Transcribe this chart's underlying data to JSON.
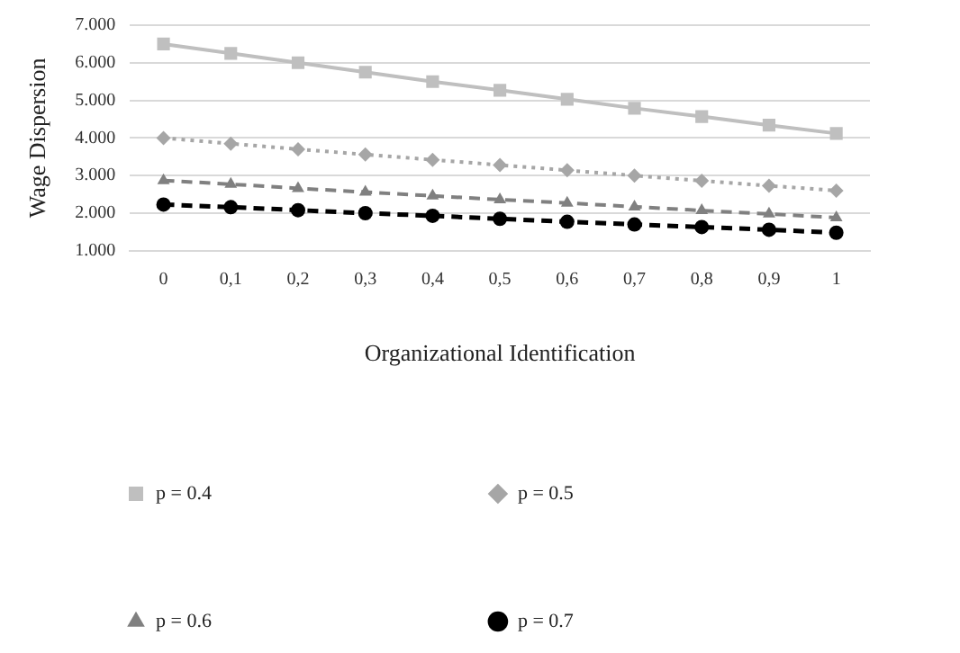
{
  "chart_data": {
    "type": "line",
    "xlabel": "Organizational Identification",
    "ylabel": "Wage Dispersion",
    "categories": [
      "0",
      "0,1",
      "0,2",
      "0,3",
      "0,4",
      "0,5",
      "0,6",
      "0,7",
      "0,8",
      "0,9",
      "1"
    ],
    "ylim": [
      1000,
      7000
    ],
    "yticks": [
      {
        "value": 1000,
        "label": "1.000"
      },
      {
        "value": 2000,
        "label": "2.000"
      },
      {
        "value": 3000,
        "label": "3.000"
      },
      {
        "value": 4000,
        "label": "4.000"
      },
      {
        "value": 5000,
        "label": "5.000"
      },
      {
        "value": 6000,
        "label": "6.000"
      },
      {
        "value": 7000,
        "label": "7.000"
      }
    ],
    "grid": "y",
    "legend": "bottom left",
    "series": [
      {
        "name": "p = 0.4",
        "color": "#bfbfbf",
        "marker": "square",
        "line_style": "solid",
        "values": [
          6500,
          6250,
          6000,
          5750,
          5500,
          5270,
          5030,
          4790,
          4570,
          4340,
          4120
        ]
      },
      {
        "name": "p = 0.5",
        "color": "#a6a6a6",
        "marker": "diamond",
        "line_style": "dotted",
        "values": [
          4000,
          3850,
          3700,
          3560,
          3420,
          3280,
          3140,
          3000,
          2860,
          2730,
          2600
        ]
      },
      {
        "name": "p = 0.6",
        "color": "#808080",
        "marker": "triangle",
        "line_style": "dashed",
        "values": [
          2870,
          2770,
          2660,
          2560,
          2460,
          2360,
          2270,
          2170,
          2070,
          1980,
          1880
        ]
      },
      {
        "name": "p = 0.7",
        "color": "#000000",
        "marker": "circle",
        "line_style": "dashed",
        "values": [
          2230,
          2160,
          2080,
          2000,
          1930,
          1850,
          1770,
          1700,
          1630,
          1560,
          1480
        ]
      }
    ]
  }
}
